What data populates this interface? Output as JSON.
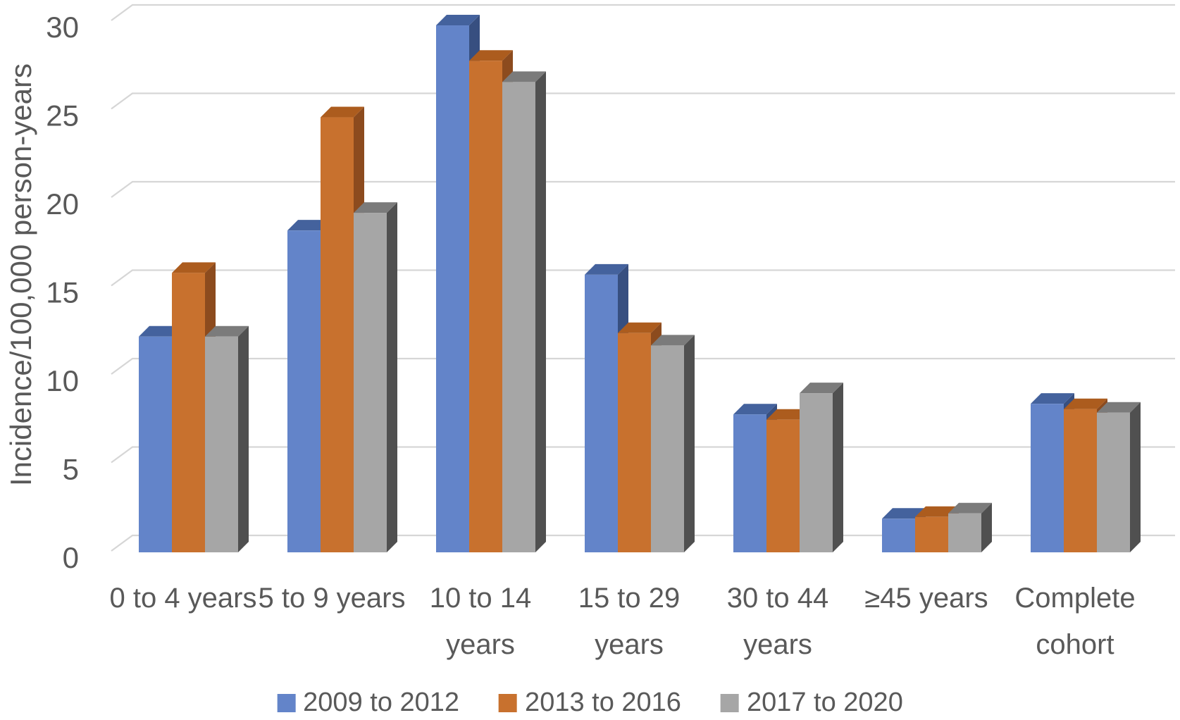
{
  "chart_data": {
    "type": "bar",
    "style": "3d-clustered-column",
    "title": "",
    "xlabel": "",
    "ylabel": "Incidence/100,000 person-years",
    "ylim": [
      0,
      30
    ],
    "yticks": [
      0,
      5,
      10,
      15,
      20,
      25,
      30
    ],
    "grid": true,
    "legend_position": "bottom",
    "gridline_color": "#D6D6D6",
    "tick_color": "#595959",
    "categories": [
      "0 to 4 years",
      "5 to 9 years",
      "10 to 14 years",
      "15 to 29 years",
      "30 to 44 years",
      "≥45 years",
      "Complete cohort"
    ],
    "categories_lines": [
      [
        "0 to 4 years"
      ],
      [
        "5 to 9 years"
      ],
      [
        "10 to 14",
        "years"
      ],
      [
        "15 to 29",
        "years"
      ],
      [
        "30 to 44",
        "years"
      ],
      [
        "≥45 years"
      ],
      [
        "Complete",
        "cohort"
      ]
    ],
    "series": [
      {
        "name": "2009 to 2012",
        "color": "#6384C9",
        "color_top": "#44629D",
        "color_side": "#374F80",
        "values": [
          12.2,
          18.2,
          29.8,
          15.7,
          7.8,
          1.9,
          8.4
        ]
      },
      {
        "name": "2013 to 2016",
        "color": "#C8712E",
        "color_top": "#AC5C1E",
        "color_side": "#8C4B1E",
        "values": [
          15.8,
          24.6,
          27.8,
          12.4,
          7.5,
          2.0,
          8.1
        ]
      },
      {
        "name": "2017 to 2020",
        "color": "#A6A6A6",
        "color_top": "#7B7B7B",
        "color_side": "#505050",
        "values": [
          12.2,
          19.2,
          26.6,
          11.7,
          9.0,
          2.2,
          7.9
        ]
      }
    ]
  }
}
